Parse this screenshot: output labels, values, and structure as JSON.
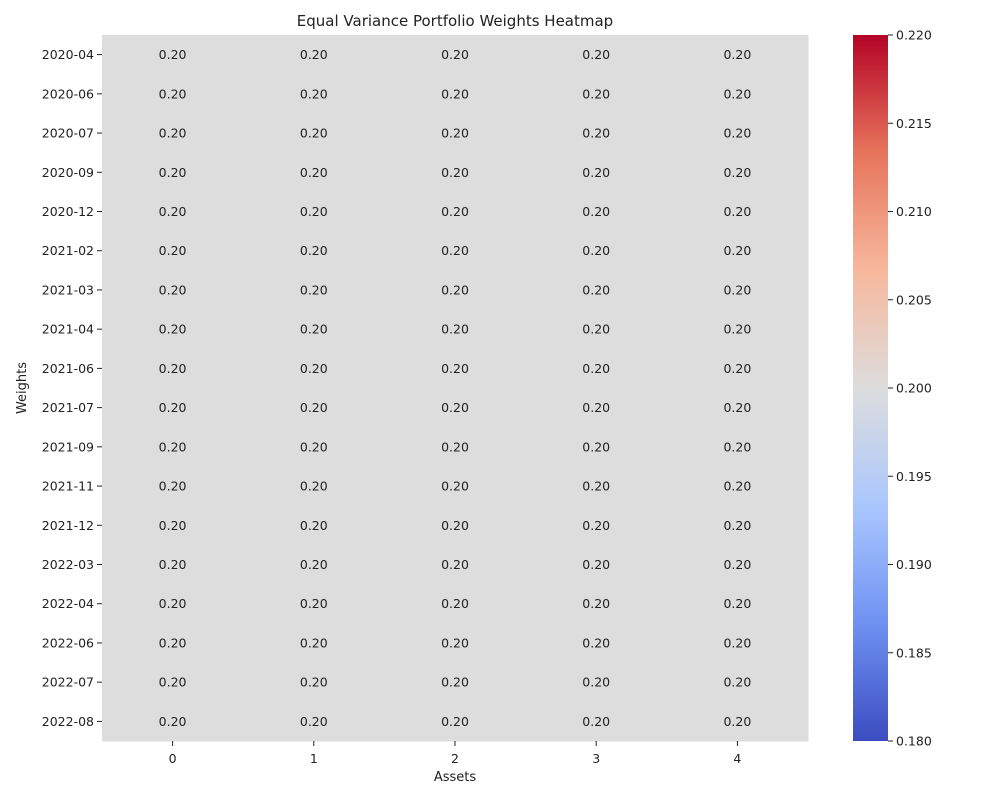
{
  "chart_data": {
    "type": "heatmap",
    "title": "Equal Variance Portfolio Weights Heatmap",
    "xlabel": "Assets",
    "ylabel": "Weights",
    "x_categories": [
      "0",
      "1",
      "2",
      "3",
      "4"
    ],
    "y_categories": [
      "2020-04",
      "2020-06",
      "2020-07",
      "2020-09",
      "2020-12",
      "2021-02",
      "2021-03",
      "2021-04",
      "2021-06",
      "2021-07",
      "2021-09",
      "2021-11",
      "2021-12",
      "2022-03",
      "2022-04",
      "2022-06",
      "2022-07",
      "2022-08"
    ],
    "values": [
      [
        0.2,
        0.2,
        0.2,
        0.2,
        0.2
      ],
      [
        0.2,
        0.2,
        0.2,
        0.2,
        0.2
      ],
      [
        0.2,
        0.2,
        0.2,
        0.2,
        0.2
      ],
      [
        0.2,
        0.2,
        0.2,
        0.2,
        0.2
      ],
      [
        0.2,
        0.2,
        0.2,
        0.2,
        0.2
      ],
      [
        0.2,
        0.2,
        0.2,
        0.2,
        0.2
      ],
      [
        0.2,
        0.2,
        0.2,
        0.2,
        0.2
      ],
      [
        0.2,
        0.2,
        0.2,
        0.2,
        0.2
      ],
      [
        0.2,
        0.2,
        0.2,
        0.2,
        0.2
      ],
      [
        0.2,
        0.2,
        0.2,
        0.2,
        0.2
      ],
      [
        0.2,
        0.2,
        0.2,
        0.2,
        0.2
      ],
      [
        0.2,
        0.2,
        0.2,
        0.2,
        0.2
      ],
      [
        0.2,
        0.2,
        0.2,
        0.2,
        0.2
      ],
      [
        0.2,
        0.2,
        0.2,
        0.2,
        0.2
      ],
      [
        0.2,
        0.2,
        0.2,
        0.2,
        0.2
      ],
      [
        0.2,
        0.2,
        0.2,
        0.2,
        0.2
      ],
      [
        0.2,
        0.2,
        0.2,
        0.2,
        0.2
      ],
      [
        0.2,
        0.2,
        0.2,
        0.2,
        0.2
      ]
    ],
    "cell_labels_format": "0.00",
    "colormap": "coolwarm",
    "colormap_stops": [
      "#3b4cc0",
      "#6f92f3",
      "#aac7fd",
      "#dddddd",
      "#f7b89c",
      "#e7745b",
      "#b40426"
    ],
    "colorbar": {
      "range": [
        0.18,
        0.22
      ],
      "ticks": [
        "0.180",
        "0.185",
        "0.190",
        "0.195",
        "0.200",
        "0.205",
        "0.210",
        "0.215",
        "0.220"
      ]
    }
  }
}
